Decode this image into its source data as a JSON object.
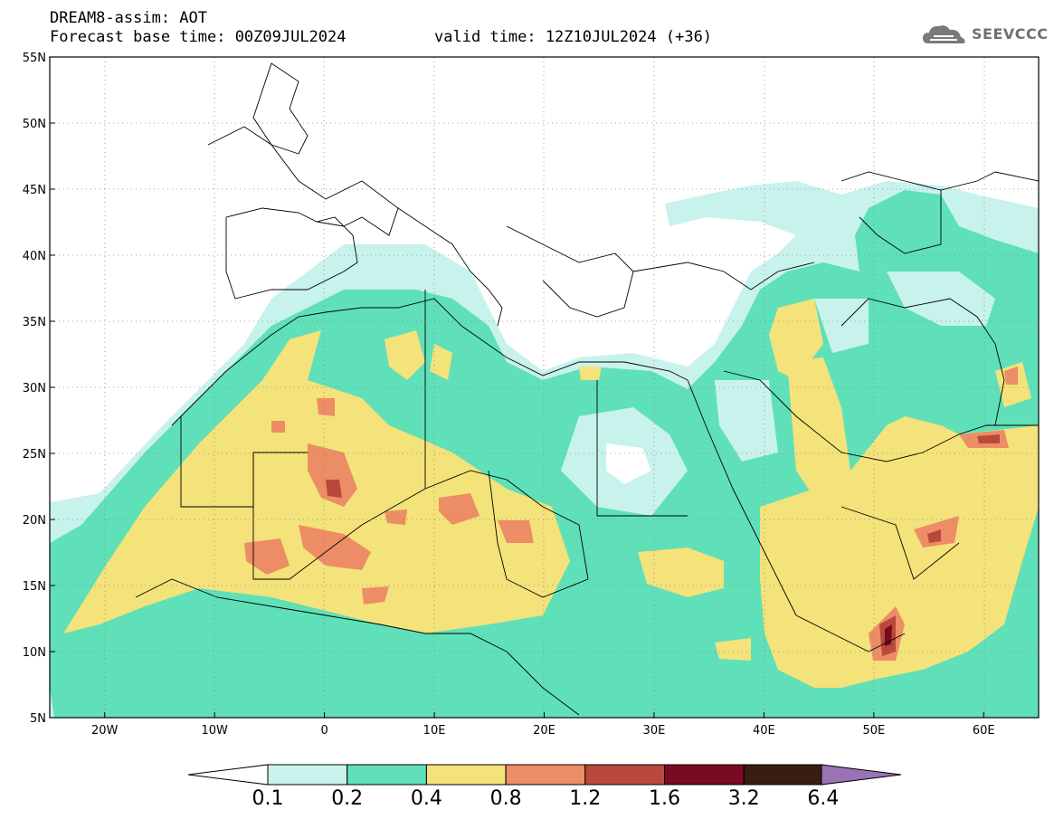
{
  "header": {
    "title": "DREAM8-assim: AOT",
    "base_time": "Forecast base time: 00Z09JUL2024",
    "valid_time": "valid time: 12Z10JUL2024 (+36)"
  },
  "logo": {
    "icon": "cloud-icon",
    "text": "SEEVCCC"
  },
  "map": {
    "lat_range": [
      5,
      55
    ],
    "lon_range": [
      -25,
      65
    ],
    "lat_labels": [
      "55N",
      "50N",
      "45N",
      "40N",
      "35N",
      "30N",
      "25N",
      "20N",
      "15N",
      "10N",
      "5N"
    ],
    "lon_labels": [
      "20W",
      "10W",
      "0",
      "10E",
      "20E",
      "30E",
      "40E",
      "50E",
      "60E"
    ],
    "grid": "dotted"
  },
  "colorbar": {
    "labels": [
      "0.1",
      "0.2",
      "0.4",
      "0.8",
      "1.2",
      "1.6",
      "3.2",
      "6.4"
    ],
    "colors": [
      "#c8f2ec",
      "#5fe0b8",
      "#f4e27a",
      "#ec8d66",
      "#b9493a",
      "#7a0a22",
      "#3a1d12",
      "#9a72b6"
    ]
  }
}
